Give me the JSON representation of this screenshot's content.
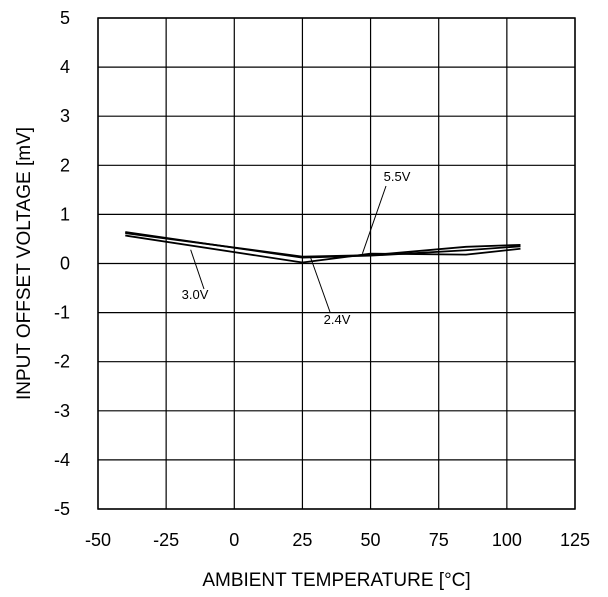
{
  "chart_data": {
    "type": "line",
    "title": "",
    "xlabel": "AMBIENT TEMPERATURE [°C]",
    "ylabel": "INPUT OFFSET VOLTAGE [mV]",
    "xlim": [
      -50,
      125
    ],
    "ylim": [
      -5,
      5
    ],
    "xticks": [
      -50,
      -25,
      0,
      25,
      50,
      75,
      100,
      125
    ],
    "yticks": [
      5,
      4,
      3,
      2,
      1,
      0,
      -1,
      -2,
      -3,
      -4,
      -5
    ],
    "grid": true,
    "legend": "none",
    "line_color": "#000000",
    "series": [
      {
        "name": "5.5V",
        "x": [
          -40,
          25,
          50,
          85,
          105
        ],
        "y": [
          0.62,
          0.14,
          0.17,
          0.34,
          0.38
        ]
      },
      {
        "name": "3.0V",
        "x": [
          -40,
          25,
          50,
          85,
          105
        ],
        "y": [
          0.57,
          0.02,
          0.2,
          0.18,
          0.3
        ]
      },
      {
        "name": "2.4V",
        "x": [
          -40,
          25,
          50,
          85,
          105
        ],
        "y": [
          0.64,
          0.12,
          0.16,
          0.27,
          0.35
        ]
      }
    ],
    "annotations": [
      {
        "text": "5.5V",
        "series": "5.5V",
        "at_x": 47,
        "at_y": 0.2
      },
      {
        "text": "3.0V",
        "series": "3.0V",
        "at_x": -16,
        "at_y": 0.28
      },
      {
        "text": "2.4V",
        "series": "2.4V",
        "at_x": 28,
        "at_y": 0.12
      }
    ]
  }
}
